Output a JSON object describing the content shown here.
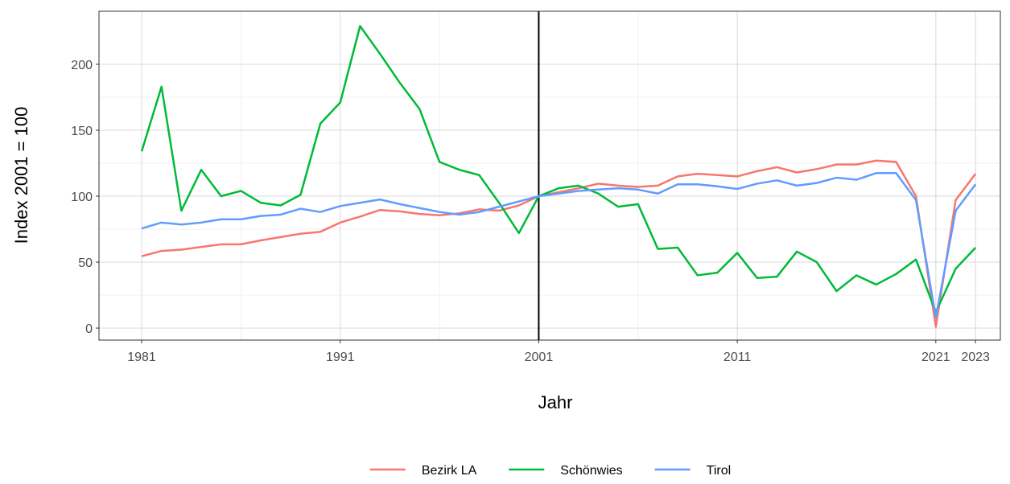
{
  "chart_data": {
    "type": "line",
    "x_label": "Jahr",
    "y_label": "Index 2001 = 100",
    "x": [
      1981,
      1982,
      1983,
      1984,
      1985,
      1986,
      1987,
      1988,
      1989,
      1990,
      1991,
      1992,
      1993,
      1994,
      1995,
      1996,
      1997,
      1998,
      1999,
      2000,
      2001,
      2002,
      2003,
      2004,
      2005,
      2006,
      2007,
      2008,
      2009,
      2010,
      2011,
      2012,
      2013,
      2014,
      2015,
      2016,
      2017,
      2018,
      2019,
      2020,
      2021,
      2022,
      2023
    ],
    "series": [
      {
        "name": "Bezirk LA",
        "color": "#F8766D",
        "values": [
          54.5,
          58.5,
          59.5,
          61.5,
          63.5,
          63.5,
          66.5,
          69,
          71.5,
          73,
          80,
          84.5,
          89.5,
          88.5,
          86.5,
          85.5,
          87,
          90,
          89,
          93,
          100,
          103,
          106,
          109.5,
          108,
          107,
          108,
          115,
          117,
          116,
          115,
          119,
          122,
          118,
          120.5,
          124,
          124,
          127,
          126,
          100,
          1,
          97,
          117
        ]
      },
      {
        "name": "Schönwies",
        "color": "#00BA38",
        "values": [
          134,
          183,
          89,
          120,
          100,
          104,
          95,
          93,
          101,
          155,
          171,
          229,
          208,
          186,
          166,
          126,
          120,
          116,
          95,
          72,
          100,
          106,
          108,
          102,
          92,
          94,
          60,
          61,
          40,
          42,
          57,
          38,
          39,
          58,
          50,
          28,
          40,
          33,
          41,
          52,
          12,
          45,
          61
        ]
      },
      {
        "name": "Tirol",
        "color": "#619CFF",
        "values": [
          75.5,
          80,
          78.5,
          80,
          82.5,
          82.5,
          85,
          86,
          90.5,
          88,
          92.5,
          95,
          97.5,
          94,
          91,
          88,
          86,
          88,
          92,
          96,
          100,
          102,
          104,
          105,
          106,
          105,
          102,
          109,
          109,
          107.5,
          105.5,
          109.5,
          112,
          108,
          110,
          114,
          112.5,
          117.5,
          117.5,
          97,
          8,
          89,
          109
        ]
      }
    ],
    "xlim": [
      1978.85,
      2024.25
    ],
    "xticks": [
      1981,
      1991,
      2001,
      2011,
      2021,
      2023
    ],
    "ylim": [
      -9.1,
      240.2
    ],
    "yticks": [
      0,
      50,
      100,
      150,
      200
    ],
    "vline": 2001,
    "grid": true,
    "legend": "bottom"
  }
}
